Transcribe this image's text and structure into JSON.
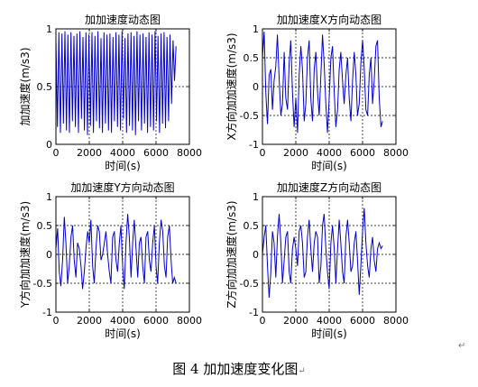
{
  "caption": "图 4  加加速度变化图",
  "para_mark": "↵",
  "caption_mark": "↵",
  "chart_data": [
    {
      "type": "line",
      "title": "加加速度动态图",
      "xlabel": "时间(s)",
      "ylabel": "加加速度(m/s3)",
      "xlim": [
        0,
        8000
      ],
      "ylim": [
        0,
        1
      ],
      "xticks": [
        0,
        2000,
        4000,
        6000,
        8000
      ],
      "yticks": [
        0,
        0.5,
        1
      ],
      "grid": true,
      "color": "#0000cc",
      "series": [
        {
          "x": [
            0,
            90,
            180,
            270,
            360,
            450,
            540,
            630,
            720,
            810,
            900,
            990,
            1080,
            1170,
            1260,
            1350,
            1440,
            1530,
            1620,
            1710,
            1800,
            1890,
            1980,
            2070,
            2160,
            2250,
            2340,
            2430,
            2520,
            2610,
            2700,
            2790,
            2880,
            2970,
            3060,
            3150,
            3240,
            3330,
            3420,
            3510,
            3600,
            3690,
            3780,
            3870,
            3960,
            4050,
            4140,
            4230,
            4320,
            4410,
            4500,
            4590,
            4680,
            4770,
            4860,
            4950,
            5040,
            5130,
            5220,
            5310,
            5400,
            5490,
            5580,
            5670,
            5760,
            5850,
            5940,
            6030,
            6120,
            6210,
            6300,
            6390,
            6480,
            6570,
            6660,
            6750,
            6840,
            6930,
            7020,
            7110,
            7200
          ],
          "values": [
            0.92,
            0.15,
            0.97,
            0.1,
            0.96,
            0.18,
            0.98,
            0.12,
            0.95,
            0.1,
            0.97,
            0.2,
            0.94,
            0.15,
            0.96,
            0.1,
            0.98,
            0.22,
            0.93,
            0.12,
            0.97,
            0.08,
            0.95,
            0.16,
            0.97,
            0.1,
            0.94,
            0.2,
            0.98,
            0.14,
            0.92,
            0.1,
            0.97,
            0.18,
            0.95,
            0.12,
            0.96,
            0.1,
            0.93,
            0.2,
            0.97,
            0.15,
            0.95,
            0.12,
            0.98,
            0.22,
            0.92,
            0.1,
            0.96,
            0.16,
            0.97,
            0.12,
            0.94,
            0.08,
            0.98,
            0.2,
            0.95,
            0.12,
            0.96,
            0.18,
            0.93,
            0.1,
            0.97,
            0.15,
            0.95,
            0.12,
            0.98,
            0.2,
            0.94,
            0.1,
            0.96,
            0.18,
            0.97,
            0.14,
            0.93,
            0.2,
            0.95,
            0.35,
            0.9,
            0.55,
            0.85
          ]
        }
      ]
    },
    {
      "type": "line",
      "title": "加加速度X方向动态图",
      "xlabel": "时间(s)",
      "ylabel": "X方向加加速度(m/s3)",
      "xlim": [
        0,
        8000
      ],
      "ylim": [
        -1,
        1
      ],
      "xticks": [
        0,
        2000,
        4000,
        6000,
        8000
      ],
      "yticks": [
        -1,
        -0.5,
        0,
        0.5,
        1
      ],
      "grid": true,
      "color": "#0000cc",
      "series": [
        {
          "x": [
            0,
            100,
            200,
            300,
            400,
            500,
            600,
            700,
            800,
            900,
            1000,
            1100,
            1200,
            1300,
            1400,
            1500,
            1600,
            1700,
            1800,
            1900,
            2000,
            2100,
            2200,
            2300,
            2400,
            2500,
            2600,
            2700,
            2800,
            2900,
            3000,
            3100,
            3200,
            3300,
            3400,
            3500,
            3600,
            3700,
            3800,
            3900,
            4000,
            4100,
            4200,
            4300,
            4400,
            4500,
            4600,
            4700,
            4800,
            4900,
            5000,
            5100,
            5200,
            5300,
            5400,
            5500,
            5600,
            5700,
            5800,
            5900,
            6000,
            6100,
            6200,
            6300,
            6400,
            6500,
            6600,
            6700,
            6800,
            6900,
            7000,
            7100,
            7200
          ],
          "values": [
            0.5,
            0.95,
            -0.1,
            -0.65,
            0.2,
            0.3,
            -0.4,
            0.1,
            0.35,
            0.9,
            0.15,
            -0.5,
            -0.3,
            0.6,
            -0.2,
            -0.4,
            0.4,
            0.8,
            -0.1,
            -0.7,
            -0.2,
            -0.8,
            0.2,
            0.7,
            0.3,
            -0.6,
            -0.3,
            0.5,
            0.8,
            -0.2,
            -0.6,
            0.3,
            0.6,
            -0.1,
            -0.5,
            0.2,
            0.9,
            0.4,
            -0.3,
            -0.8,
            -0.2,
            0.5,
            0.7,
            -0.1,
            -0.7,
            -0.4,
            0.3,
            0.6,
            0.1,
            -0.3,
            0.2,
            0.5,
            -0.2,
            -0.6,
            0.1,
            0.6,
            0.2,
            -0.5,
            -0.3,
            0.4,
            0.8,
            0.3,
            -0.4,
            -0.5,
            0.2,
            0.5,
            -0.3,
            0.1,
            0.7,
            0.8,
            -0.2,
            -0.7,
            -0.6
          ]
        }
      ]
    },
    {
      "type": "line",
      "title": "加加速度Y方向动态图",
      "xlabel": "时间(s)",
      "ylabel": "Y方向加加速度(m/s3)",
      "xlim": [
        0,
        8000
      ],
      "ylim": [
        -1,
        1
      ],
      "xticks": [
        0,
        2000,
        4000,
        6000,
        8000
      ],
      "yticks": [
        -1,
        -0.5,
        0,
        0.5,
        1
      ],
      "grid": true,
      "color": "#0000cc",
      "series": [
        {
          "x": [
            0,
            100,
            200,
            300,
            400,
            500,
            600,
            700,
            800,
            900,
            1000,
            1100,
            1200,
            1300,
            1400,
            1500,
            1600,
            1700,
            1800,
            1900,
            2000,
            2100,
            2200,
            2300,
            2400,
            2500,
            2600,
            2700,
            2800,
            2900,
            3000,
            3100,
            3200,
            3300,
            3400,
            3500,
            3600,
            3700,
            3800,
            3900,
            4000,
            4100,
            4200,
            4300,
            4400,
            4500,
            4600,
            4700,
            4800,
            4900,
            5000,
            5100,
            5200,
            5300,
            5400,
            5500,
            5600,
            5700,
            5800,
            5900,
            6000,
            6100,
            6200,
            6300,
            6400,
            6500,
            6600,
            6700,
            6800,
            6900,
            7000,
            7100,
            7200
          ],
          "values": [
            0.1,
            0.45,
            -0.3,
            -0.55,
            -0.1,
            0.65,
            0.2,
            -0.5,
            -0.2,
            0.3,
            0.5,
            -0.1,
            -0.4,
            0.2,
            0.1,
            -0.2,
            -0.6,
            -0.3,
            0.1,
            0.4,
            0.2,
            0.6,
            -0.2,
            -0.5,
            0.1,
            0.5,
            0.4,
            -0.1,
            0.0,
            0.2,
            0.4,
            0.0,
            -0.3,
            -0.5,
            0.3,
            0.4,
            -0.1,
            -0.3,
            0.2,
            0.5,
            -0.2,
            -0.6,
            0.2,
            0.7,
            0.3,
            -0.4,
            0.2,
            0.6,
            0.1,
            -0.4,
            0.2,
            0.3,
            -0.2,
            -0.5,
            0.3,
            0.4,
            -0.1,
            -0.3,
            0.2,
            0.5,
            -0.2,
            -0.5,
            0.2,
            0.6,
            0.4,
            -0.2,
            -0.4,
            0.3,
            0.5,
            -0.1,
            -0.5,
            -0.4,
            -0.5
          ]
        }
      ]
    },
    {
      "type": "line",
      "title": "加加速度Z方向动态图",
      "xlabel": "时间(s)",
      "ylabel": "Z方向加加速度(m/s3)",
      "xlim": [
        0,
        8000
      ],
      "ylim": [
        -1,
        1
      ],
      "xticks": [
        0,
        2000,
        4000,
        6000,
        8000
      ],
      "yticks": [
        -1,
        -0.5,
        0,
        0.5,
        1
      ],
      "grid": true,
      "color": "#0000cc",
      "series": [
        {
          "x": [
            0,
            100,
            200,
            300,
            400,
            500,
            600,
            700,
            800,
            900,
            1000,
            1100,
            1200,
            1300,
            1400,
            1500,
            1600,
            1700,
            1800,
            1900,
            2000,
            2100,
            2200,
            2300,
            2400,
            2500,
            2600,
            2700,
            2800,
            2900,
            3000,
            3100,
            3200,
            3300,
            3400,
            3500,
            3600,
            3700,
            3800,
            3900,
            4000,
            4100,
            4200,
            4300,
            4400,
            4500,
            4600,
            4700,
            4800,
            4900,
            5000,
            5100,
            5200,
            5300,
            5400,
            5500,
            5600,
            5700,
            5800,
            5900,
            6000,
            6100,
            6200,
            6300,
            6400,
            6500,
            6600,
            6700,
            6800,
            6900,
            7000,
            7100,
            7200
          ],
          "values": [
            0.0,
            0.3,
            0.5,
            -0.2,
            -0.75,
            -0.3,
            0.4,
            0.2,
            -0.4,
            0.3,
            0.7,
            0.2,
            -0.5,
            -0.1,
            0.3,
            0.4,
            -0.3,
            -0.5,
            0.1,
            0.3,
            0.1,
            -0.2,
            0.4,
            0.5,
            0.2,
            -0.4,
            -0.3,
            0.3,
            0.6,
            0.1,
            -0.3,
            0.2,
            0.4,
            0.3,
            -0.5,
            -0.2,
            0.5,
            0.7,
            0.1,
            -0.3,
            -0.6,
            0.2,
            0.5,
            0.1,
            -0.5,
            0.1,
            0.6,
            0.2,
            -0.3,
            -0.5,
            0.3,
            0.6,
            0.2,
            -0.3,
            -0.2,
            0.2,
            0.4,
            -0.1,
            -0.7,
            -0.2,
            0.4,
            0.8,
            0.2,
            -0.2,
            -0.4,
            0.1,
            0.3,
            -0.1,
            -0.3,
            0.1,
            0.2,
            0.1,
            0.15
          ]
        }
      ]
    }
  ]
}
